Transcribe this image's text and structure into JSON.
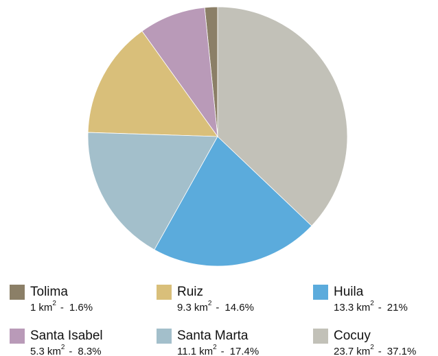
{
  "chart_data": {
    "type": "pie",
    "unit": "km",
    "unit_exponent": "2",
    "separator": "-",
    "series": [
      {
        "name": "Tolima",
        "color": "#8b7f67",
        "values": [
          1
        ],
        "percents": [
          1.6
        ],
        "percent_labels": [
          "1.6%"
        ]
      },
      {
        "name": "Santa Isabel",
        "color": "#b99ab8",
        "values": [
          5.3
        ],
        "percents": [
          8.3
        ],
        "percent_labels": [
          "8.3%"
        ]
      },
      {
        "name": "Ruiz",
        "color": "#d9bf7a",
        "values": [
          9.3
        ],
        "percents": [
          14.6
        ],
        "percent_labels": [
          "14.6%"
        ]
      },
      {
        "name": "Santa Marta",
        "color": "#a3bfcb",
        "values": [
          11.1
        ],
        "percents": [
          17.4
        ],
        "percent_labels": [
          "17.4%"
        ]
      },
      {
        "name": "Huila",
        "color": "#5babdc",
        "values": [
          13.3
        ],
        "percents": [
          21
        ],
        "percent_labels": [
          "21%"
        ]
      },
      {
        "name": "Cocuy",
        "color": "#c2c1b8",
        "values": [
          23.7
        ],
        "percents": [
          37.1
        ],
        "percent_labels": [
          "37.1%"
        ]
      }
    ]
  }
}
